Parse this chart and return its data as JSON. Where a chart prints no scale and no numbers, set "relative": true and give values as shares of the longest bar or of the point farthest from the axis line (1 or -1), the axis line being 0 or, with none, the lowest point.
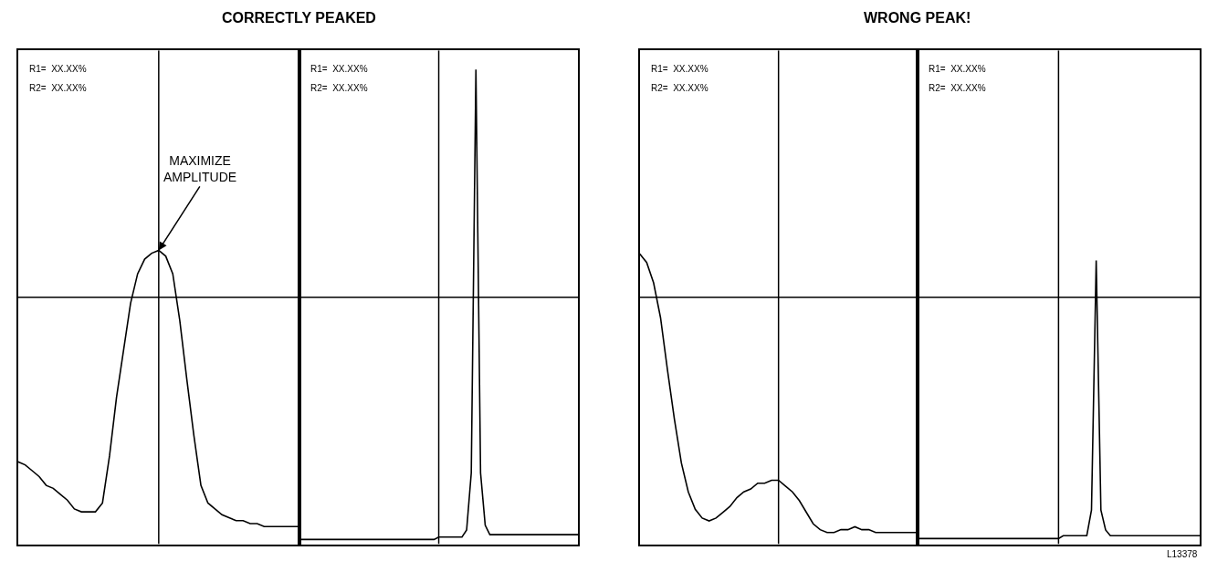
{
  "chart_data": [
    {
      "type": "line",
      "title": "CORRECTLY PEAKED",
      "relative": true,
      "categories": [
        null,
        null,
        null,
        null,
        null,
        null,
        null,
        null,
        null,
        null,
        null,
        null,
        null,
        null,
        null,
        null,
        null,
        null,
        null,
        null,
        null,
        null,
        null,
        null,
        null,
        null,
        null,
        null,
        null,
        null,
        null,
        null,
        null,
        null,
        null,
        null,
        null,
        null,
        null,
        null,
        null
      ],
      "series": [
        {
          "color": "#000000",
          "values": [
            0.28,
            0.27,
            0.25,
            0.23,
            0.2,
            0.19,
            0.17,
            0.15,
            0.12,
            0.11,
            0.11,
            0.11,
            0.14,
            0.3,
            0.5,
            0.66,
            0.82,
            0.92,
            0.97,
            0.99,
            1,
            0.98,
            0.92,
            0.76,
            0.56,
            0.37,
            0.2,
            0.14,
            0.12,
            0.1,
            0.09,
            0.08,
            0.08,
            0.07,
            0.07,
            0.06,
            0.06,
            0.06,
            0.06,
            0.06,
            0.06
          ]
        }
      ],
      "ref_lines": [
        {
          "axis": "y",
          "value": 0.84,
          "color": "#000000"
        }
      ],
      "annotations": [
        "R1=  XX.XX%",
        "R2=  XX.XX%",
        "MAXIMIZE\nAMPLITUDE"
      ]
    },
    {
      "type": "line",
      "relative": true,
      "categories": [
        null,
        null,
        null,
        null,
        null,
        null,
        null,
        null,
        null,
        null,
        null,
        null,
        null,
        null,
        null,
        null,
        null,
        null,
        null,
        null,
        null,
        null,
        null,
        null,
        null,
        null,
        null,
        null,
        null,
        null,
        null,
        null,
        null,
        null,
        null,
        null,
        null,
        null,
        null,
        null,
        null,
        null,
        null,
        null,
        null,
        null,
        null,
        null,
        null,
        null,
        null,
        null,
        null,
        null,
        null,
        null,
        null,
        null,
        null,
        null,
        null
      ],
      "series": [
        {
          "color": "#000000",
          "values": [
            0.01,
            0.01,
            0.01,
            0.01,
            0.01,
            0.01,
            0.01,
            0.01,
            0.01,
            0.01,
            0.01,
            0.01,
            0.01,
            0.01,
            0.01,
            0.01,
            0.01,
            0.01,
            0.01,
            0.01,
            0.01,
            0.01,
            0.01,
            0.01,
            0.01,
            0.01,
            0.01,
            0.01,
            0.01,
            0.01,
            0.015,
            0.015,
            0.015,
            0.015,
            0.015,
            0.015,
            0.03,
            0.15,
            1,
            0.15,
            0.04,
            0.02,
            0.02,
            0.02,
            0.02,
            0.02,
            0.02,
            0.02,
            0.02,
            0.02,
            0.02,
            0.02,
            0.02,
            0.02,
            0.02,
            0.02,
            0.02,
            0.02,
            0.02,
            0.02,
            0.02
          ]
        }
      ],
      "ref_lines": [
        {
          "axis": "y",
          "value": 0.52,
          "color": "#000000"
        }
      ],
      "annotations": [
        "R1=  XX.XX%",
        "R2=  XX.XX%"
      ]
    },
    {
      "type": "line",
      "title": "WRONG PEAK!",
      "relative": true,
      "categories": [
        null,
        null,
        null,
        null,
        null,
        null,
        null,
        null,
        null,
        null,
        null,
        null,
        null,
        null,
        null,
        null,
        null,
        null,
        null,
        null,
        null,
        null,
        null,
        null,
        null,
        null,
        null,
        null,
        null,
        null,
        null,
        null,
        null,
        null,
        null,
        null,
        null,
        null,
        null,
        null,
        null
      ],
      "series": [
        {
          "color": "#000000",
          "values": [
            1.0,
            0.97,
            0.9,
            0.78,
            0.6,
            0.43,
            0.28,
            0.18,
            0.12,
            0.09,
            0.08,
            0.09,
            0.11,
            0.13,
            0.16,
            0.18,
            0.19,
            0.21,
            0.21,
            0.22,
            0.22,
            0.2,
            0.18,
            0.15,
            0.11,
            0.07,
            0.05,
            0.04,
            0.04,
            0.05,
            0.05,
            0.06,
            0.05,
            0.05,
            0.04,
            0.04,
            0.04,
            0.04,
            0.04,
            0.04,
            0.04
          ]
        }
      ],
      "ref_lines": [
        {
          "axis": "y",
          "value": 0.85,
          "color": "#000000"
        }
      ],
      "annotations": [
        "R1=  XX.XX%",
        "R2=  XX.XX%"
      ]
    },
    {
      "type": "line",
      "relative": true,
      "categories": [
        null,
        null,
        null,
        null,
        null,
        null,
        null,
        null,
        null,
        null,
        null,
        null,
        null,
        null,
        null,
        null,
        null,
        null,
        null,
        null,
        null,
        null,
        null,
        null,
        null,
        null,
        null,
        null,
        null,
        null,
        null,
        null,
        null,
        null,
        null,
        null,
        null,
        null,
        null,
        null,
        null,
        null,
        null,
        null,
        null,
        null,
        null,
        null,
        null,
        null,
        null,
        null,
        null,
        null,
        null,
        null,
        null,
        null,
        null,
        null,
        null
      ],
      "series": [
        {
          "color": "#000000",
          "values": [
            0.02,
            0.02,
            0.02,
            0.02,
            0.02,
            0.02,
            0.02,
            0.02,
            0.02,
            0.02,
            0.02,
            0.02,
            0.02,
            0.02,
            0.02,
            0.02,
            0.02,
            0.02,
            0.02,
            0.02,
            0.02,
            0.02,
            0.02,
            0.02,
            0.02,
            0.02,
            0.02,
            0.02,
            0.02,
            0.02,
            0.02,
            0.03,
            0.03,
            0.03,
            0.03,
            0.03,
            0.03,
            0.12,
            1,
            0.12,
            0.05,
            0.03,
            0.03,
            0.03,
            0.03,
            0.03,
            0.03,
            0.03,
            0.03,
            0.03,
            0.03,
            0.03,
            0.03,
            0.03,
            0.03,
            0.03,
            0.03,
            0.03,
            0.03,
            0.03,
            0.03
          ]
        }
      ],
      "ref_lines": [
        {
          "axis": "y",
          "value": 0.87,
          "color": "#000000"
        }
      ],
      "annotations": [
        "R1=  XX.XX%",
        "R2=  XX.XX%",
        "L13378"
      ]
    }
  ]
}
